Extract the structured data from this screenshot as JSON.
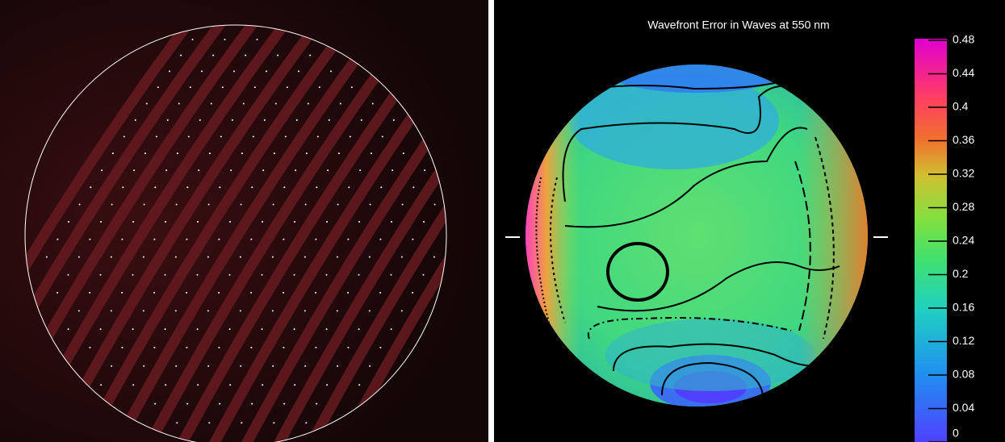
{
  "wavefront_map": {
    "title": "Wavefront Error in Waves at 550 nm",
    "colorbar": {
      "clim": [
        0,
        0.48
      ],
      "ticks": [
        0,
        0.04,
        0.08,
        0.12,
        0.16,
        0.2,
        0.24,
        0.28,
        0.32,
        0.36,
        0.4,
        0.44,
        0.48
      ]
    }
  }
}
